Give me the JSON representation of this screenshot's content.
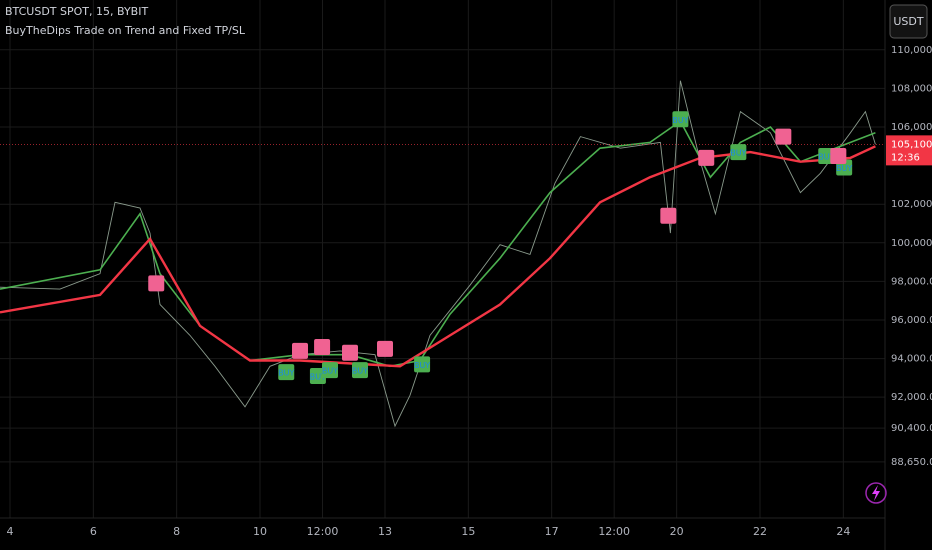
{
  "chart_data": {
    "type": "line",
    "title": "BTCUSDT SPOT, 15, BYBIT",
    "subtitle": "BuyTheDips Trade on Trend and Fixed TP/SL",
    "currency": "USDT",
    "xlim": [
      3.76,
      25.0
    ],
    "ylim": [
      85740,
      112580
    ],
    "grid": true,
    "xticks": [
      4,
      6,
      8,
      10,
      {
        "value": 11.5,
        "label": "12:00"
      },
      13,
      15,
      17,
      {
        "value": 18.5,
        "label": "12:00"
      },
      20,
      22,
      24
    ],
    "yticks": [
      {
        "value": 110000,
        "label": "110,000.00"
      },
      {
        "value": 108000,
        "label": "108,000.00"
      },
      {
        "value": 106000,
        "label": "106,000.00"
      },
      {
        "value": 102000,
        "label": "102,000.00"
      },
      {
        "value": 100000,
        "label": "100,000.00"
      },
      {
        "value": 98000,
        "label": "98,000.00"
      },
      {
        "value": 96000,
        "label": "96,000.00"
      },
      {
        "value": 94000,
        "label": "94,000.00"
      },
      {
        "value": 92000,
        "label": "92,000.00"
      },
      {
        "value": 90400,
        "label": "90,400.00"
      },
      {
        "value": 88650,
        "label": "88,650.00"
      }
    ],
    "series": [
      {
        "color": "#8a9a8c",
        "x": [
          3.76,
          5.2,
          6.16,
          6.52,
          7.12,
          7.36,
          7.6,
          8.32,
          8.92,
          9.64,
          10.24,
          10.96,
          11.92,
          12.76,
          13.24,
          13.6,
          14.08,
          15.04,
          15.76,
          16.48,
          17.08,
          17.69,
          18.65,
          19.61,
          19.85,
          20.09,
          20.57,
          20.93,
          21.53,
          22.25,
          22.97,
          23.45,
          24.17,
          24.53,
          24.77
        ],
        "values": [
          97700,
          97600,
          98400,
          102100,
          101800,
          100500,
          96800,
          95200,
          93600,
          91500,
          93600,
          94200,
          94400,
          94200,
          90500,
          92100,
          95200,
          97800,
          99900,
          99400,
          103100,
          105500,
          104900,
          105200,
          100500,
          108400,
          104200,
          101500,
          106800,
          105700,
          102600,
          103600,
          105700,
          106800,
          105100
        ]
      },
      {
        "color": "#4caf50",
        "x": [
          3.76,
          6.16,
          7.12,
          7.6,
          8.56,
          9.76,
          10.96,
          12.16,
          13.12,
          13.84,
          14.56,
          15.76,
          16.96,
          18.16,
          19.36,
          20.09,
          20.81,
          21.53,
          22.25,
          22.97,
          23.93,
          24.77
        ],
        "values": [
          97600,
          98600,
          101500,
          98400,
          95700,
          93900,
          94200,
          94200,
          93600,
          93900,
          96300,
          99200,
          102600,
          104900,
          105200,
          106300,
          103400,
          105200,
          106000,
          104200,
          105000,
          105700
        ]
      },
      {
        "color": "#f23645",
        "x": [
          3.76,
          6.16,
          7.36,
          8.56,
          9.76,
          10.96,
          13.36,
          14.56,
          15.76,
          16.96,
          18.16,
          19.36,
          20.57,
          21.77,
          22.97,
          24.17,
          24.77
        ],
        "values": [
          96400,
          97300,
          100200,
          95700,
          93900,
          93900,
          93600,
          95200,
          96800,
          99200,
          102100,
          103400,
          104400,
          104700,
          104200,
          104400,
          105000
        ]
      }
    ],
    "buy_signals": {
      "label": "BUY",
      "color": "#4caf50",
      "x": [
        10.63,
        11.39,
        11.68,
        12.4,
        13.89,
        20.09,
        21.48,
        23.59,
        24.02
      ],
      "values": [
        93300,
        93100,
        93400,
        93400,
        93700,
        106400,
        104700,
        104500,
        103900
      ]
    },
    "sell_signals": {
      "color": "#f06292",
      "x": [
        7.51,
        10.96,
        11.49,
        12.16,
        13.0,
        19.8,
        20.71,
        22.56,
        23.88
      ],
      "values": [
        97900,
        94400,
        94600,
        94300,
        94500,
        101400,
        104400,
        105500,
        104500
      ]
    },
    "last_price": {
      "value": 105100,
      "label": "105,100.00"
    },
    "countdown": "12:36"
  }
}
